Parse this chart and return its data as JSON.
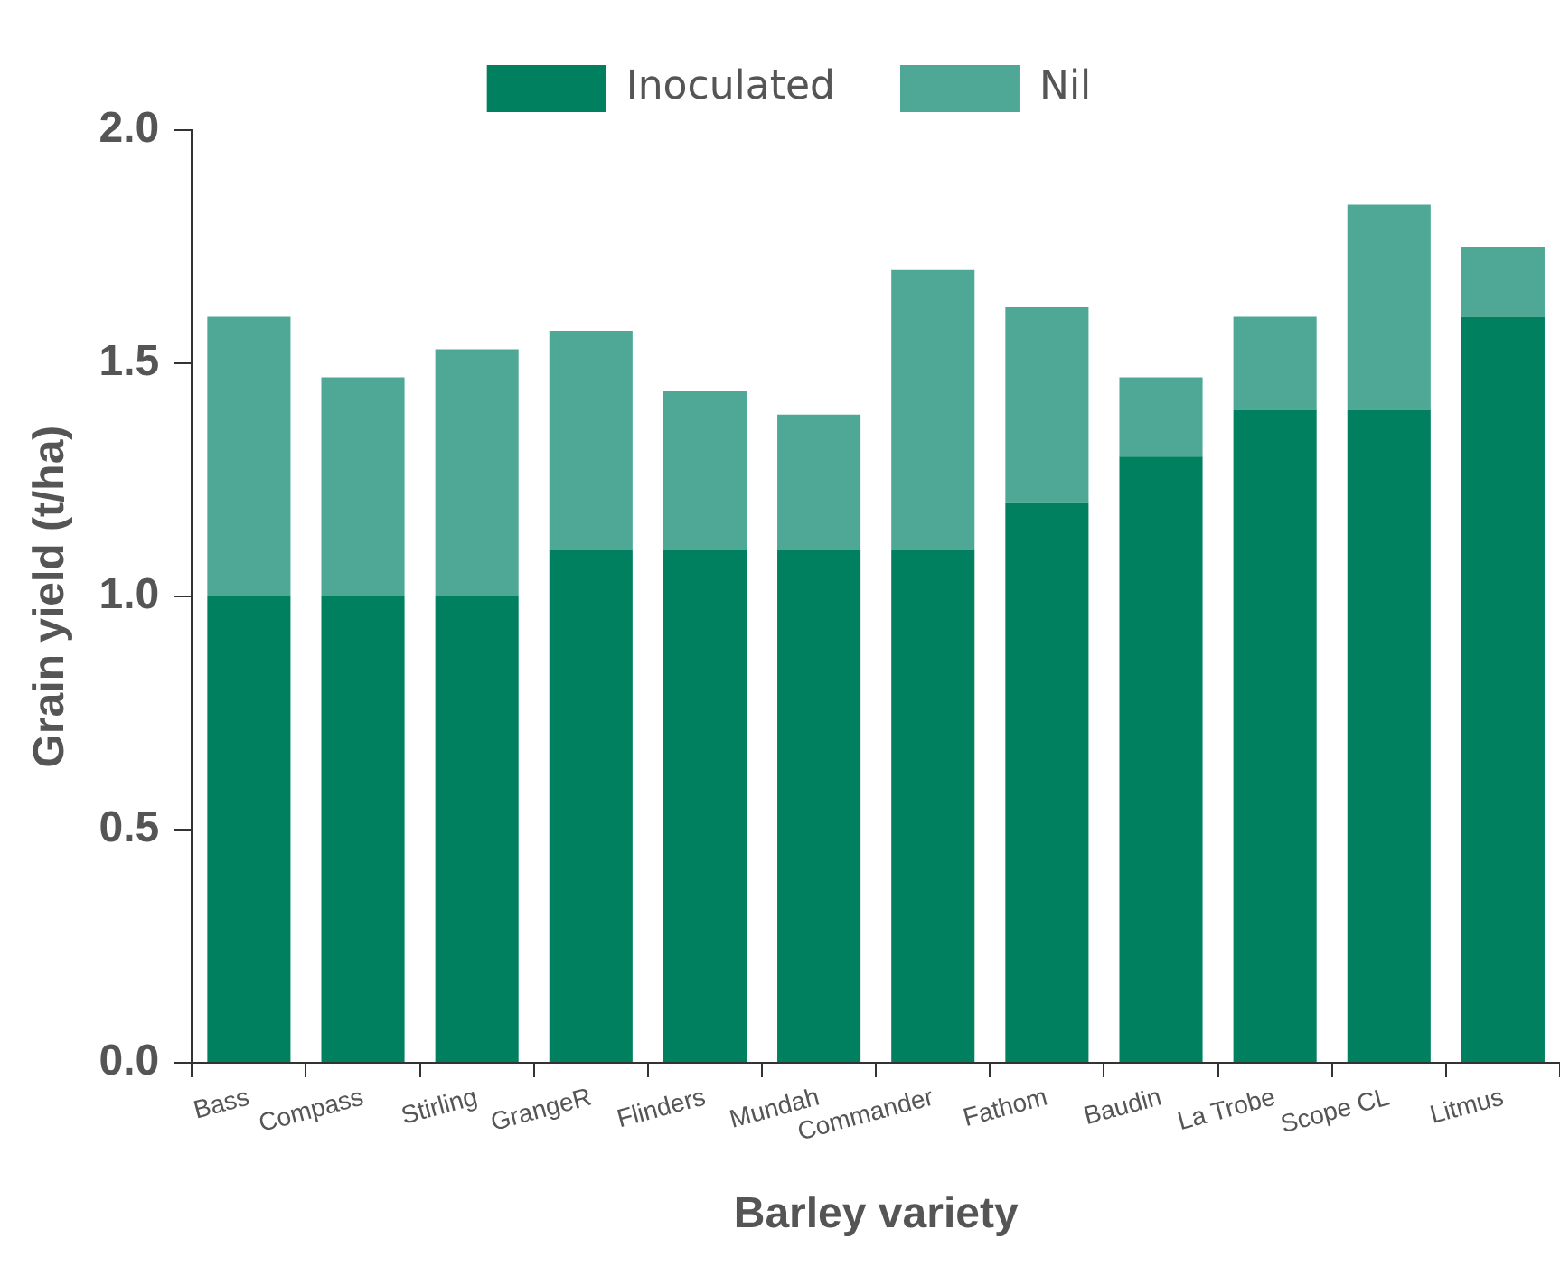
{
  "chart_data": {
    "type": "bar",
    "stacked": true,
    "xlabel": "Barley variety",
    "ylabel": "Grain yield (t/ha)",
    "categories": [
      "Bass",
      "Compass",
      "Stirling",
      "GrangeR",
      "Flinders",
      "Mundah",
      "Commander",
      "Fathom",
      "Baudin",
      "La Trobe",
      "Scope CL",
      "Litmus"
    ],
    "series": [
      {
        "name": "Inoculated",
        "color": "#00805f",
        "values": [
          1.0,
          1.0,
          1.0,
          1.1,
          1.1,
          1.1,
          1.1,
          1.2,
          1.3,
          1.4,
          1.4,
          1.6
        ]
      },
      {
        "name": "Nil",
        "color": "#4fa896",
        "values": [
          0.6,
          0.47,
          0.53,
          0.47,
          0.34,
          0.29,
          0.6,
          0.42,
          0.17,
          0.2,
          0.44,
          0.15
        ]
      }
    ],
    "ylim": [
      0,
      2.0
    ],
    "yticks": [
      {
        "value": 0,
        "label": "0.0"
      },
      {
        "value": 0.5,
        "label": "0.5"
      },
      {
        "value": 1,
        "label": "1.0"
      },
      {
        "value": 1.5,
        "label": "1.5"
      },
      {
        "value": 2,
        "label": "2.0"
      }
    ],
    "grid": false,
    "legend": "top"
  }
}
